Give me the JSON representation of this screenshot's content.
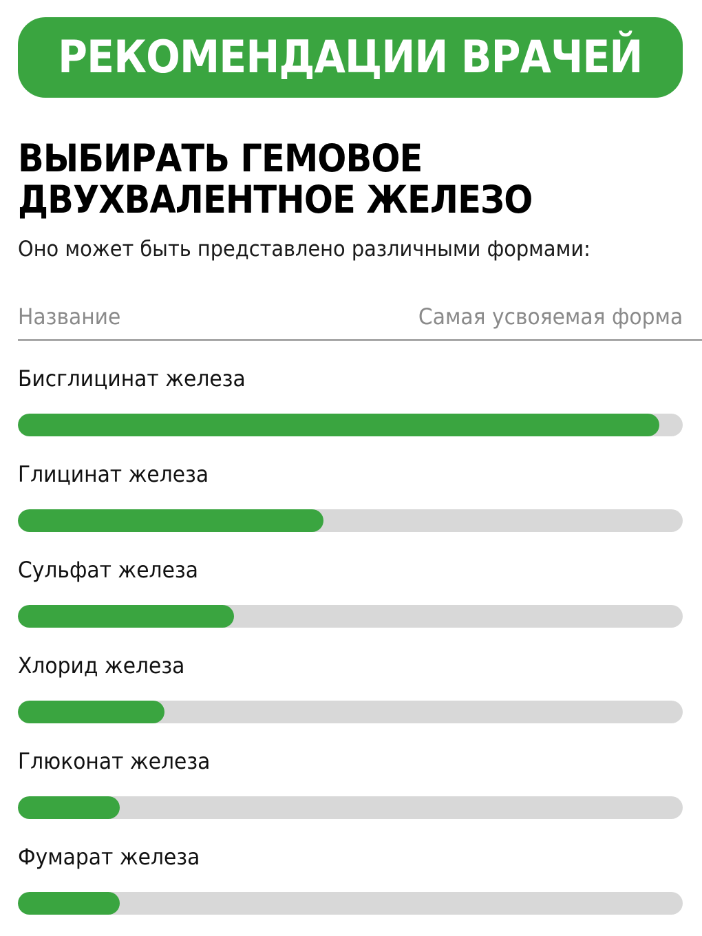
{
  "banner": {
    "title": "РЕКОМЕНДАЦИИ ВРАЧЕЙ"
  },
  "heading": {
    "line1": "ВЫБИРАТЬ ГЕМОВОЕ",
    "line2": "ДВУХВАЛЕНТНОЕ ЖЕЛЕЗО"
  },
  "subtitle": "Оно может быть представлено различными формами:",
  "columns": {
    "left": "Название",
    "right": "Самая усвояемая форма"
  },
  "colors": {
    "accent": "#3aa540",
    "track": "#d8d8d8"
  },
  "chart_data": {
    "type": "bar",
    "orientation": "horizontal",
    "categories": [
      "Бисглицинат железа",
      "Глицинат железа",
      "Сульфат железа",
      "Хлорид железа",
      "Глюконат железа",
      "Фумарат железа"
    ],
    "values": [
      0.965,
      0.46,
      0.325,
      0.22,
      0.153,
      0.153
    ],
    "value_scale": "fraction of full bar",
    "xlim": [
      0,
      1
    ]
  }
}
